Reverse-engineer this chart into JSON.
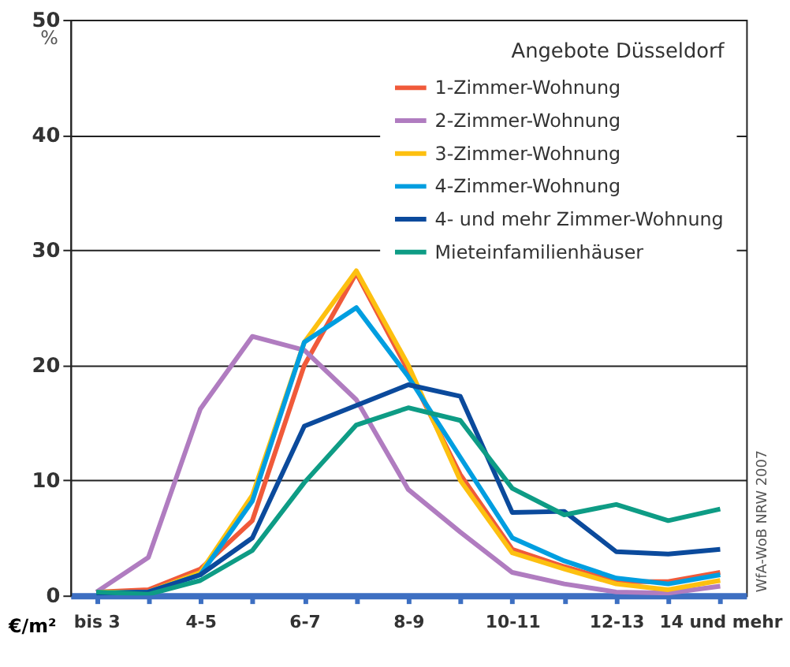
{
  "chart_data": {
    "type": "line",
    "categories": [
      "bis 3",
      null,
      "4-5",
      null,
      "6-7",
      null,
      "8-9",
      null,
      "10-11",
      null,
      "12-13",
      null,
      "14 und mehr"
    ],
    "xlabel": "€/m²",
    "ylabel": "%",
    "legend_title": "Angebote Düsseldorf",
    "ylim": [
      0,
      50
    ],
    "yticks": [
      0,
      10,
      20,
      30,
      40,
      50
    ],
    "grid": "y",
    "legend": "top right",
    "marker": "none",
    "line_style": "solid",
    "annotations": [
      "WfA-WoB NRW 2007"
    ],
    "series": [
      {
        "name": "1-Zimmer-Wohnung",
        "color": "#f05a3a",
        "values": [
          0.3,
          0.5,
          2.3,
          6.5,
          20,
          28,
          19.5,
          10.5,
          4,
          2.5,
          1.2,
          1.2,
          2
        ]
      },
      {
        "name": "2-Zimmer-Wohnung",
        "color": "#b07cc0",
        "values": [
          0.3,
          3.3,
          16.2,
          22.5,
          21.3,
          17,
          9.2,
          5.5,
          2,
          1,
          0.3,
          0.2,
          0.8
        ]
      },
      {
        "name": "3-Zimmer-Wohnung",
        "color": "#fdc010",
        "values": [
          0.3,
          0.3,
          2,
          8.7,
          22,
          28.2,
          20,
          10,
          3.7,
          2.3,
          1,
          0.5,
          1.3
        ]
      },
      {
        "name": "4-Zimmer-Wohnung",
        "color": "#009ee0",
        "values": [
          0.2,
          0.3,
          1.8,
          8.2,
          22,
          25,
          19,
          12,
          5,
          3,
          1.5,
          1,
          1.8
        ]
      },
      {
        "name": "4- und mehr Zimmer-Wohnung",
        "color": "#0b4a9c",
        "values": [
          0.2,
          0.3,
          1.8,
          5,
          14.7,
          16.5,
          18.3,
          17.3,
          7.2,
          7.3,
          3.8,
          3.6,
          4
        ]
      },
      {
        "name": "Mieteinfamilienhäuser",
        "color": "#0e9c85",
        "values": [
          0.3,
          0.1,
          1.3,
          3.9,
          9.8,
          14.8,
          16.3,
          15.2,
          9.3,
          7,
          7.9,
          6.5,
          7.5
        ]
      }
    ]
  }
}
